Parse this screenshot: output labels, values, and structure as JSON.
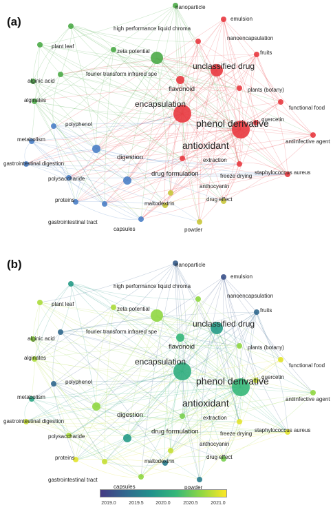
{
  "panels": [
    {
      "letter": "(a)"
    },
    {
      "letter": "(b)"
    }
  ],
  "nodes": [
    {
      "id": "nanoparticle",
      "label": "nanoparticle",
      "cluster": "green",
      "year": 2019.3,
      "weight": 1
    },
    {
      "id": "emulsion",
      "label": "emulsion",
      "cluster": "red",
      "year": 2019.2,
      "weight": 1
    },
    {
      "id": "hplc",
      "label": "high performance liquid chroma",
      "cluster": "green",
      "year": 2019.9,
      "weight": 1
    },
    {
      "id": "nanoencapsulation",
      "label": "nanoencapsulation",
      "cluster": "red",
      "year": 2020.6,
      "weight": 1
    },
    {
      "id": "plant-leaf",
      "label": "plant leaf",
      "cluster": "green",
      "year": 2020.7,
      "weight": 1
    },
    {
      "id": "zeta",
      "label": "zeta potential",
      "cluster": "green",
      "year": 2020.7,
      "weight": 1
    },
    {
      "id": "fruits",
      "label": "fruits",
      "cluster": "red",
      "year": 2019.4,
      "weight": 1
    },
    {
      "id": "unclassified-drug",
      "label": "unclassified drug",
      "cluster": "red",
      "year": 2019.9,
      "weight": 3
    },
    {
      "id": "alginic",
      "label": "alginic acid",
      "cluster": "green",
      "year": 2020.6,
      "weight": 1
    },
    {
      "id": "ftir",
      "label": "fourier transform infrared spe",
      "cluster": "green",
      "year": 2019.4,
      "weight": 1
    },
    {
      "id": "flavonoid",
      "label": "flavonoid",
      "cluster": "red",
      "year": 2020.2,
      "weight": 2
    },
    {
      "id": "plants-botany",
      "label": "plants (botany)",
      "cluster": "red",
      "year": 2020.6,
      "weight": 1
    },
    {
      "id": "alginates",
      "label": "alginates",
      "cluster": "green",
      "year": 2020.7,
      "weight": 1
    },
    {
      "id": "encapsulation",
      "label": "encapsulation",
      "cluster": "green",
      "year": 2020.6,
      "weight": 3
    },
    {
      "id": "functional-food",
      "label": "functional food",
      "cluster": "red",
      "year": 2020.9,
      "weight": 1
    },
    {
      "id": "polyphenol",
      "label": "polyphenol",
      "cluster": "blue",
      "year": 2019.4,
      "weight": 1
    },
    {
      "id": "phenol-derivative",
      "label": "phenol derivative",
      "cluster": "red",
      "year": 2020.2,
      "weight": 4
    },
    {
      "id": "quercetin",
      "label": "quercetin",
      "cluster": "red",
      "year": 2020.8,
      "weight": 1
    },
    {
      "id": "metabolism",
      "label": "metabolism",
      "cluster": "blue",
      "year": 2020.0,
      "weight": 1
    },
    {
      "id": "antioxidant",
      "label": "antioxidant",
      "cluster": "red",
      "year": 2020.1,
      "weight": 4
    },
    {
      "id": "antiinfective",
      "label": "antiinfective agent",
      "cluster": "red",
      "year": 2020.6,
      "weight": 1
    },
    {
      "id": "gi-digestion",
      "label": "gastrointestinal digestion",
      "cluster": "blue",
      "year": 2020.8,
      "weight": 1
    },
    {
      "id": "digestion",
      "label": "digestion",
      "cluster": "blue",
      "year": 2020.6,
      "weight": 2
    },
    {
      "id": "extraction",
      "label": "extraction",
      "cluster": "red",
      "year": 2020.5,
      "weight": 1
    },
    {
      "id": "drug-formulation",
      "label": "drug formulation",
      "cluster": "blue",
      "year": 2019.9,
      "weight": 2
    },
    {
      "id": "freeze-drying",
      "label": "freeze drying",
      "cluster": "red",
      "year": 2020.9,
      "weight": 1
    },
    {
      "id": "polysaccharide",
      "label": "polysaccharide",
      "cluster": "blue",
      "year": 2020.7,
      "weight": 1
    },
    {
      "id": "anthocyanin",
      "label": "anthocyanin",
      "cluster": "yellow",
      "year": 2020.8,
      "weight": 1
    },
    {
      "id": "staph",
      "label": "staphylococcus aureus",
      "cluster": "red",
      "year": 2020.9,
      "weight": 1
    },
    {
      "id": "drug-effect",
      "label": "drug effect",
      "cluster": "yellow",
      "year": 2020.5,
      "weight": 1
    },
    {
      "id": "proteins",
      "label": "proteins",
      "cluster": "blue",
      "year": 2020.9,
      "weight": 1
    },
    {
      "id": "maltodextrin",
      "label": "maltodextrin",
      "cluster": "yellow",
      "year": 2019.6,
      "weight": 1
    },
    {
      "id": "gi-tract",
      "label": "gastrointestinal tract",
      "cluster": "blue",
      "year": 2020.8,
      "weight": 1
    },
    {
      "id": "capsules",
      "label": "capsules",
      "cluster": "blue",
      "year": 2020.6,
      "weight": 1
    },
    {
      "id": "powder",
      "label": "powder",
      "cluster": "yellow",
      "year": 2019.6,
      "weight": 1
    }
  ],
  "colorbar": {
    "ticks": [
      "2019.0",
      "2019.5",
      "2020.0",
      "2020.5",
      "2021.0"
    ]
  },
  "colors": {
    "red": "#e8393f",
    "green": "#4dab48",
    "blue": "#4a80c6",
    "yellow": "#c9c63a"
  }
}
